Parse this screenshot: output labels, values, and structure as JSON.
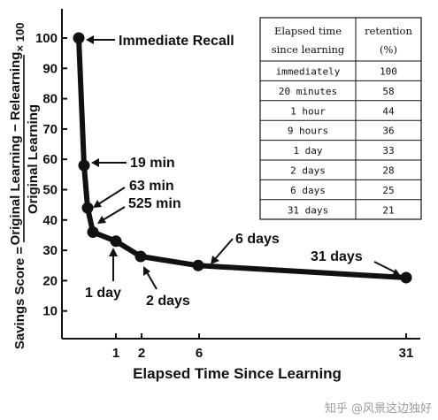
{
  "chart_data": {
    "type": "line",
    "xlabel": "Elapsed Time Since Learning",
    "ylabel": {
      "prefix": "Savings Score =",
      "numerator": "Original Learning − Relearning",
      "denominator": "Original Learning",
      "suffix": "× 100"
    },
    "xticks": [
      "1",
      "2",
      "6",
      "31"
    ],
    "yticks": [
      "10",
      "20",
      "30",
      "40",
      "50",
      "60",
      "70",
      "80",
      "90",
      "100"
    ],
    "ylim": [
      0,
      105
    ],
    "x_scale": "days, compressed",
    "grid": false,
    "points": [
      {
        "label": "Immediate Recall",
        "retention": 100
      },
      {
        "label": "19 min",
        "retention": 58
      },
      {
        "label": "63 min",
        "retention": 44
      },
      {
        "label": "525 min",
        "retention": 36
      },
      {
        "label": "1 day",
        "retention": 33
      },
      {
        "label": "2 days",
        "retention": 28
      },
      {
        "label": "6 days",
        "retention": 25
      },
      {
        "label": "31 days",
        "retention": 21
      }
    ],
    "table": {
      "headers": [
        [
          "Elapsed time",
          "since learning"
        ],
        [
          "retention",
          "(%)"
        ]
      ],
      "rows": [
        [
          "immediately",
          "100"
        ],
        [
          "20 minutes",
          "58"
        ],
        [
          "1 hour",
          "44"
        ],
        [
          "9 hours",
          "36"
        ],
        [
          "1 day",
          "33"
        ],
        [
          "2 days",
          "28"
        ],
        [
          "6 days",
          "25"
        ],
        [
          "31 days",
          "21"
        ]
      ]
    }
  },
  "watermark": "知乎 @风景这边独好",
  "colors": {
    "ink": "#111111",
    "background": "#ffffff",
    "watermark": "#9a9a9a"
  }
}
